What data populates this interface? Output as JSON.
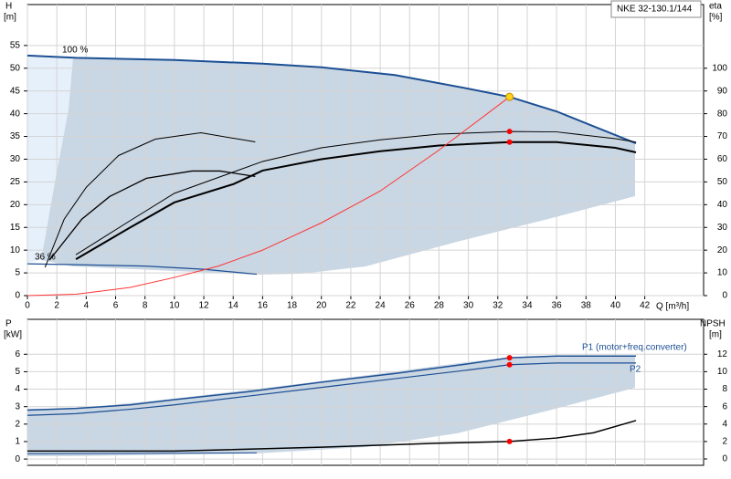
{
  "chart_data": [
    {
      "type": "line",
      "title": "NKE 32-130.1/144",
      "ylabel": "H",
      "yunit": "[m]",
      "y2label": "eta",
      "y2unit": "[%]",
      "xlabel": "Q [m³/h]",
      "xlim": [
        0,
        46
      ],
      "xticks": [
        0,
        2,
        4,
        6,
        8,
        10,
        12,
        14,
        16,
        18,
        20,
        22,
        24,
        26,
        28,
        30,
        32,
        34,
        36,
        38,
        40,
        42
      ],
      "ylim": [
        0,
        64
      ],
      "yticks": [
        0,
        5,
        10,
        15,
        20,
        25,
        30,
        35,
        40,
        45,
        50,
        55
      ],
      "y2lim": [
        0,
        128
      ],
      "y2ticks": [
        0,
        10,
        20,
        30,
        40,
        50,
        60,
        70,
        80,
        90,
        100
      ],
      "grid": true,
      "series": [
        {
          "name": "100 %",
          "color": "#1c4f94",
          "width": 2,
          "x": [
            0,
            3.3,
            10,
            16,
            20,
            25,
            30,
            32.8,
            36,
            41.4
          ],
          "values": [
            52.8,
            52.3,
            51.8,
            51,
            50.2,
            48.5,
            45.5,
            43.7,
            40.5,
            33.5
          ]
        },
        {
          "name": "36 %",
          "color": "#1c4f94",
          "width": 1.2,
          "x": [
            0,
            3.3,
            8,
            12,
            15.6
          ],
          "values": [
            7,
            6.8,
            6.5,
            5.8,
            4.7
          ]
        },
        {
          "color": "#000000",
          "width": 2,
          "axis": "y2",
          "x": [
            3.3,
            7,
            10,
            14,
            16,
            20,
            24,
            28,
            32.8,
            36,
            40,
            41.4
          ],
          "values": [
            16,
            30,
            41,
            49,
            55,
            60,
            63.5,
            66,
            67.5,
            67.5,
            65,
            63
          ]
        },
        {
          "color": "#000000",
          "width": 1,
          "axis": "y2",
          "x": [
            3.3,
            7,
            10,
            16,
            20,
            24,
            28,
            32.8,
            36,
            40,
            41.4
          ],
          "values": [
            18,
            33,
            45,
            59,
            65,
            68.5,
            71,
            72.2,
            72,
            69,
            67.5
          ]
        },
        {
          "color": "#000000",
          "width": 1,
          "axis": "y2",
          "x": [
            1.2,
            2.5,
            4,
            6.2,
            8.7,
            11.8,
            15.5
          ],
          "values": [
            12.4,
            33.6,
            47.6,
            61.6,
            68.8,
            71.6,
            67.6
          ]
        },
        {
          "color": "#000000",
          "width": 1.3,
          "axis": "y2",
          "x": [
            1.5,
            3.7,
            5.6,
            8.1,
            11.2,
            13.1,
            15.5
          ],
          "values": [
            15.6,
            33.6,
            43.6,
            51.6,
            54.8,
            54.8,
            52.4
          ]
        },
        {
          "color": "#ff3333",
          "width": 1,
          "x": [
            0,
            3.3,
            7,
            10,
            13,
            16,
            20,
            24,
            28,
            32.8
          ],
          "values": [
            0,
            0.3,
            1.8,
            4,
            6.5,
            10,
            16,
            23,
            32,
            43.7
          ]
        }
      ],
      "markers": [
        {
          "x": 32.8,
          "value": 43.7,
          "color": "#ffd21a"
        },
        {
          "x": 32.8,
          "value": 72.2,
          "color": "#ff0000",
          "axis": "y2"
        },
        {
          "x": 32.8,
          "value": 67.5,
          "color": "#ff0000",
          "axis": "y2"
        }
      ]
    },
    {
      "type": "line",
      "ylabel": "P",
      "yunit": "[kW]",
      "y2label": "NPSH",
      "y2unit": "[m]",
      "xlim": [
        0,
        46
      ],
      "ylim": [
        -0.36,
        8
      ],
      "yticks": [
        0,
        1,
        2,
        3,
        4,
        5,
        6
      ],
      "y2lim": [
        -0.73,
        16
      ],
      "y2ticks": [
        0,
        2,
        4,
        6,
        8,
        10,
        12
      ],
      "grid": true,
      "series": [
        {
          "name": "P1 (motor+freq.converter)",
          "color": "#1c4f94",
          "width": 1.5,
          "x": [
            0,
            3.3,
            7,
            10,
            15,
            20,
            25,
            30,
            32.8,
            36,
            41.4
          ],
          "values": [
            2.8,
            2.9,
            3.1,
            3.4,
            3.85,
            4.4,
            4.9,
            5.45,
            5.8,
            5.9,
            5.9
          ]
        },
        {
          "name": "P2",
          "color": "#1c4f94",
          "width": 1.2,
          "x": [
            0,
            3.3,
            7,
            10,
            15,
            20,
            25,
            30,
            32.8,
            36,
            41.4
          ],
          "values": [
            2.5,
            2.6,
            2.85,
            3.1,
            3.6,
            4.1,
            4.6,
            5.1,
            5.4,
            5.5,
            5.5
          ]
        },
        {
          "color": "#1c4f94",
          "width": 1,
          "x": [
            0,
            15.6
          ],
          "values": [
            0.3,
            0.35
          ]
        },
        {
          "color": "#000000",
          "width": 1.5,
          "axis": "y2",
          "x": [
            0,
            10,
            20,
            28,
            32.8,
            36,
            38.5,
            41.4
          ],
          "values": [
            0.9,
            0.9,
            1.35,
            1.8,
            2,
            2.4,
            3,
            4.4
          ]
        }
      ],
      "markers": [
        {
          "x": 32.8,
          "value": 5.8,
          "color": "#ff0000"
        },
        {
          "x": 32.8,
          "value": 5.4,
          "color": "#ff0000"
        },
        {
          "x": 32.8,
          "value": 2,
          "color": "#ff0000",
          "axis": "y2"
        }
      ]
    }
  ]
}
